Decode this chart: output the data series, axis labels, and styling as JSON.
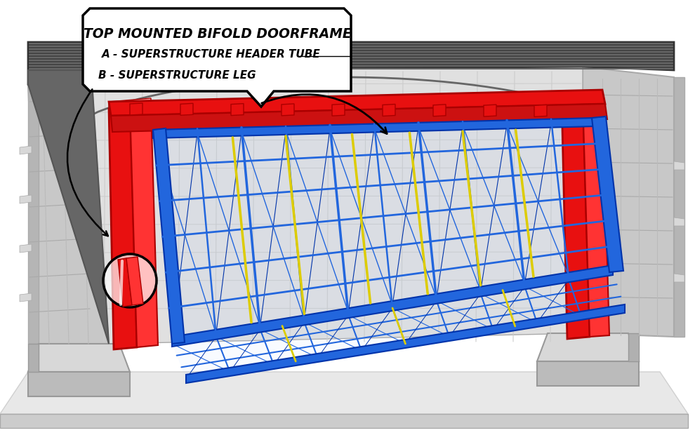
{
  "title": "TOP MOUNTED BIFOLD DOORFRAME",
  "label_a": "A - SUPERSTRUCTURE HEADER TUBE",
  "label_b": "B - SUPERSTRUCTURE LEG",
  "bg_color": "#ffffff",
  "red_frame": "#e81010",
  "red_dark": "#aa0000",
  "red_light": "#ff3333",
  "blue_frame": "#2266dd",
  "blue_dark": "#0033aa",
  "yellow_cable": "#ddcc00",
  "wall_mid": "#c8c8c8",
  "wall_light": "#e0e0e0",
  "wall_dark": "#aaaaaa",
  "roof_dark": "#444444",
  "roof_mid": "#666666",
  "roof_light": "#888888",
  "concrete_top": "#d8d8d8",
  "concrete_side": "#bbbbbb",
  "concrete_dark": "#999999",
  "floor_top": "#e8e8e8",
  "floor_side": "#cccccc",
  "figsize": [
    9.9,
    6.3
  ],
  "dpi": 100
}
